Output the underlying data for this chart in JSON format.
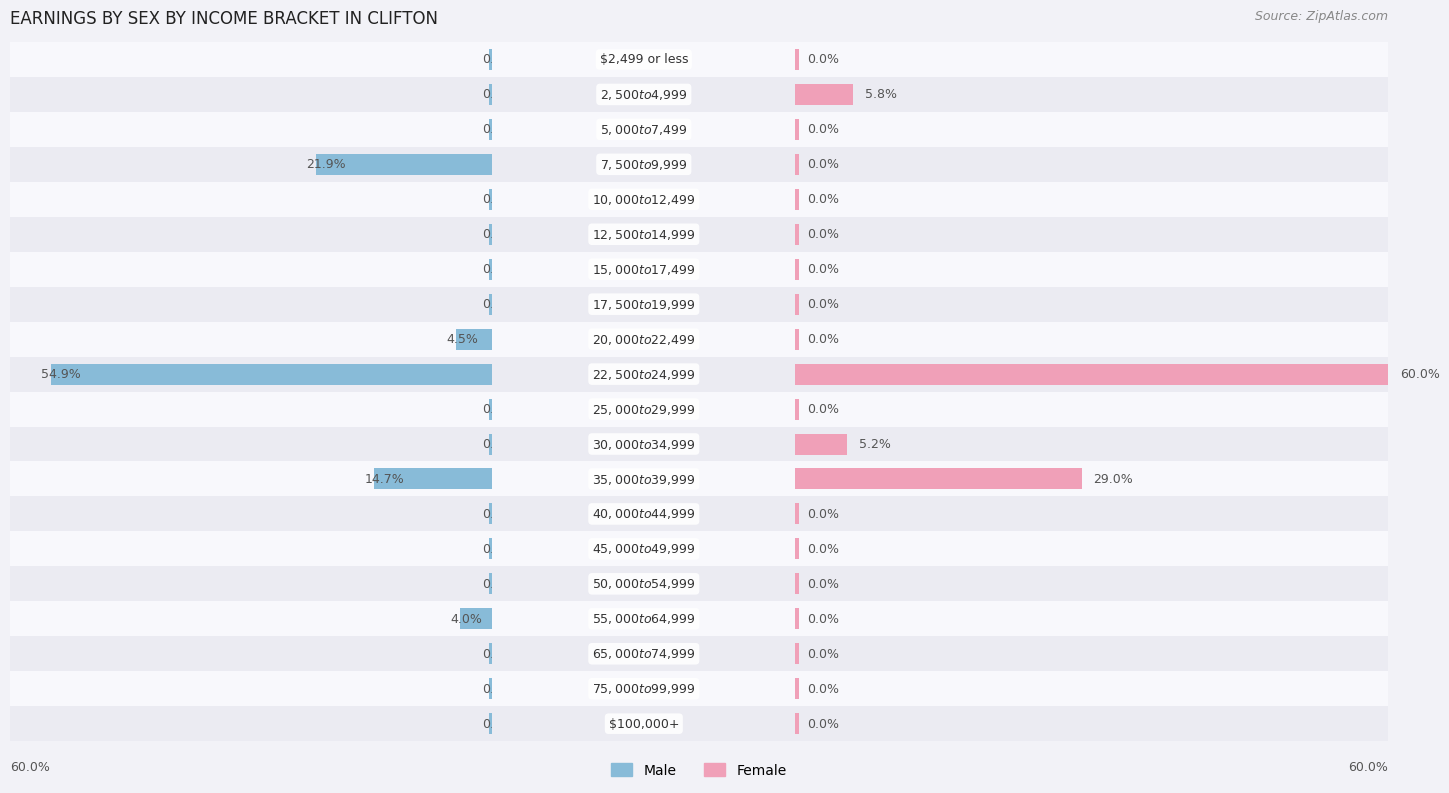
{
  "title": "EARNINGS BY SEX BY INCOME BRACKET IN CLIFTON",
  "source": "Source: ZipAtlas.com",
  "categories": [
    "$2,499 or less",
    "$2,500 to $4,999",
    "$5,000 to $7,499",
    "$7,500 to $9,999",
    "$10,000 to $12,499",
    "$12,500 to $14,999",
    "$15,000 to $17,499",
    "$17,500 to $19,999",
    "$20,000 to $22,499",
    "$22,500 to $24,999",
    "$25,000 to $29,999",
    "$30,000 to $34,999",
    "$35,000 to $39,999",
    "$40,000 to $44,999",
    "$45,000 to $49,999",
    "$50,000 to $54,999",
    "$55,000 to $64,999",
    "$65,000 to $74,999",
    "$75,000 to $99,999",
    "$100,000+"
  ],
  "male_values": [
    0.0,
    0.0,
    0.0,
    21.9,
    0.0,
    0.0,
    0.0,
    0.0,
    4.5,
    54.9,
    0.0,
    0.0,
    14.7,
    0.0,
    0.0,
    0.0,
    4.0,
    0.0,
    0.0,
    0.0
  ],
  "female_values": [
    0.0,
    5.8,
    0.0,
    0.0,
    0.0,
    0.0,
    0.0,
    0.0,
    0.0,
    60.0,
    0.0,
    5.2,
    29.0,
    0.0,
    0.0,
    0.0,
    0.0,
    0.0,
    0.0,
    0.0
  ],
  "male_color": "#88bbd8",
  "female_color": "#f0a0b8",
  "male_label": "Male",
  "female_label": "Female",
  "xlim": 60.0,
  "bar_height": 0.6,
  "bg_color": "#f2f2f7",
  "row_colors": [
    "#ebebf2",
    "#f8f8fc"
  ],
  "title_fontsize": 12,
  "label_fontsize": 9,
  "category_fontsize": 9,
  "source_fontsize": 9
}
